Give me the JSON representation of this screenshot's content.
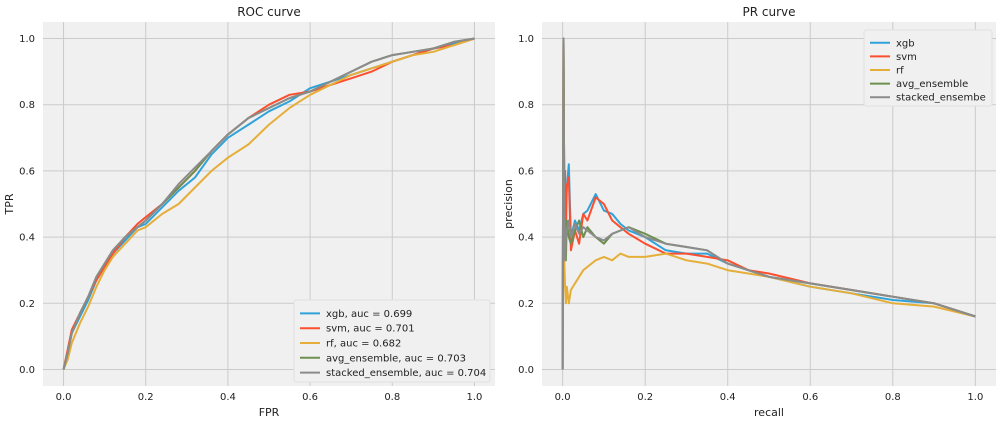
{
  "colors": {
    "xgb": "#30a2da",
    "svm": "#fc4f30",
    "rf": "#e5ae38",
    "avg_ensemble": "#6d904f",
    "stacked_ensemble": "#8b8b8b",
    "axes_background": "#f0f0f0",
    "grid": "#cbcbcb"
  },
  "chart_data": [
    {
      "type": "line",
      "title": "ROC curve",
      "xlabel": "FPR",
      "ylabel": "TPR",
      "xlim": [
        -0.05,
        1.05
      ],
      "ylim": [
        -0.05,
        1.05
      ],
      "xticks": [
        0.0,
        0.2,
        0.4,
        0.6,
        0.8,
        1.0
      ],
      "yticks": [
        0.0,
        0.2,
        0.4,
        0.6,
        0.8,
        1.0
      ],
      "xtick_labels": [
        "0.0",
        "0.2",
        "0.4",
        "0.6",
        "0.8",
        "1.0"
      ],
      "ytick_labels": [
        "0.0",
        "0.2",
        "0.4",
        "0.6",
        "0.8",
        "1.0"
      ],
      "grid": true,
      "legend_position": "lower-right",
      "series": [
        {
          "key": "xgb",
          "name": "xgb, auc = 0.699",
          "x": [
            0,
            0.01,
            0.02,
            0.04,
            0.06,
            0.08,
            0.1,
            0.12,
            0.15,
            0.18,
            0.2,
            0.24,
            0.28,
            0.32,
            0.36,
            0.4,
            0.45,
            0.5,
            0.55,
            0.6,
            0.65,
            0.7,
            0.75,
            0.8,
            0.85,
            0.9,
            0.95,
            1.0
          ],
          "y": [
            0,
            0.05,
            0.11,
            0.16,
            0.21,
            0.27,
            0.31,
            0.35,
            0.39,
            0.43,
            0.44,
            0.49,
            0.54,
            0.58,
            0.65,
            0.7,
            0.74,
            0.78,
            0.81,
            0.85,
            0.87,
            0.89,
            0.91,
            0.93,
            0.95,
            0.97,
            0.985,
            1.0
          ]
        },
        {
          "key": "svm",
          "name": "svm, auc = 0.701",
          "x": [
            0,
            0.01,
            0.02,
            0.04,
            0.06,
            0.08,
            0.1,
            0.12,
            0.15,
            0.18,
            0.2,
            0.24,
            0.28,
            0.32,
            0.36,
            0.4,
            0.45,
            0.5,
            0.55,
            0.6,
            0.65,
            0.7,
            0.75,
            0.8,
            0.85,
            0.9,
            0.95,
            1.0
          ],
          "y": [
            0,
            0.06,
            0.12,
            0.17,
            0.22,
            0.27,
            0.31,
            0.35,
            0.4,
            0.44,
            0.46,
            0.5,
            0.55,
            0.6,
            0.66,
            0.71,
            0.76,
            0.8,
            0.83,
            0.84,
            0.86,
            0.88,
            0.9,
            0.93,
            0.95,
            0.97,
            0.98,
            1.0
          ]
        },
        {
          "key": "rf",
          "name": "rf, auc = 0.682",
          "x": [
            0,
            0.01,
            0.02,
            0.04,
            0.06,
            0.08,
            0.1,
            0.12,
            0.15,
            0.18,
            0.2,
            0.24,
            0.28,
            0.32,
            0.36,
            0.4,
            0.45,
            0.5,
            0.55,
            0.6,
            0.65,
            0.7,
            0.75,
            0.8,
            0.85,
            0.9,
            0.95,
            1.0
          ],
          "y": [
            0,
            0.03,
            0.08,
            0.14,
            0.19,
            0.25,
            0.3,
            0.34,
            0.38,
            0.42,
            0.43,
            0.47,
            0.5,
            0.55,
            0.6,
            0.64,
            0.68,
            0.74,
            0.79,
            0.83,
            0.86,
            0.89,
            0.91,
            0.93,
            0.95,
            0.96,
            0.98,
            1.0
          ]
        },
        {
          "key": "avg_ensemble",
          "name": "avg_ensemble, auc = 0.703",
          "x": [
            0,
            0.01,
            0.02,
            0.04,
            0.06,
            0.08,
            0.1,
            0.12,
            0.15,
            0.18,
            0.2,
            0.24,
            0.28,
            0.32,
            0.36,
            0.4,
            0.45,
            0.5,
            0.55,
            0.6,
            0.65,
            0.7,
            0.75,
            0.8,
            0.85,
            0.9,
            0.95,
            1.0
          ],
          "y": [
            0,
            0.05,
            0.11,
            0.17,
            0.22,
            0.28,
            0.32,
            0.36,
            0.4,
            0.43,
            0.45,
            0.5,
            0.55,
            0.6,
            0.66,
            0.71,
            0.76,
            0.79,
            0.82,
            0.84,
            0.87,
            0.9,
            0.93,
            0.95,
            0.96,
            0.97,
            0.99,
            1.0
          ]
        },
        {
          "key": "stacked_ensemble",
          "name": "stacked_ensemble, auc = 0.704",
          "x": [
            0,
            0.01,
            0.02,
            0.04,
            0.06,
            0.08,
            0.1,
            0.12,
            0.15,
            0.18,
            0.2,
            0.24,
            0.28,
            0.32,
            0.36,
            0.4,
            0.45,
            0.5,
            0.55,
            0.6,
            0.65,
            0.7,
            0.75,
            0.8,
            0.85,
            0.9,
            0.95,
            1.0
          ],
          "y": [
            0,
            0.05,
            0.11,
            0.17,
            0.22,
            0.28,
            0.32,
            0.36,
            0.4,
            0.43,
            0.45,
            0.5,
            0.56,
            0.61,
            0.66,
            0.71,
            0.76,
            0.79,
            0.82,
            0.84,
            0.87,
            0.9,
            0.93,
            0.95,
            0.96,
            0.97,
            0.99,
            1.0
          ]
        }
      ]
    },
    {
      "type": "line",
      "title": "PR curve",
      "xlabel": "recall",
      "ylabel": "precision",
      "xlim": [
        -0.05,
        1.05
      ],
      "ylim": [
        -0.05,
        1.05
      ],
      "xticks": [
        0.0,
        0.2,
        0.4,
        0.6,
        0.8,
        1.0
      ],
      "yticks": [
        0.0,
        0.2,
        0.4,
        0.6,
        0.8,
        1.0
      ],
      "xtick_labels": [
        "0.0",
        "0.2",
        "0.4",
        "0.6",
        "0.8",
        "1.0"
      ],
      "ytick_labels": [
        "0.0",
        "0.2",
        "0.4",
        "0.6",
        "0.8",
        "1.0"
      ],
      "grid": true,
      "legend_position": "top-right",
      "series": [
        {
          "key": "xgb",
          "name": "xgb",
          "x": [
            0,
            0.002,
            0.004,
            0.006,
            0.008,
            0.01,
            0.015,
            0.02,
            0.03,
            0.04,
            0.05,
            0.06,
            0.08,
            0.1,
            0.12,
            0.14,
            0.16,
            0.2,
            0.25,
            0.3,
            0.35,
            0.4,
            0.45,
            0.5,
            0.6,
            0.7,
            0.8,
            0.9,
            1.0
          ],
          "y": [
            0,
            1.0,
            0.5,
            0.33,
            0.5,
            0.55,
            0.62,
            0.4,
            0.45,
            0.42,
            0.47,
            0.48,
            0.53,
            0.48,
            0.47,
            0.44,
            0.42,
            0.4,
            0.36,
            0.35,
            0.35,
            0.32,
            0.3,
            0.28,
            0.25,
            0.23,
            0.21,
            0.2,
            0.16
          ]
        },
        {
          "key": "svm",
          "name": "svm",
          "x": [
            0,
            0.002,
            0.004,
            0.006,
            0.008,
            0.01,
            0.015,
            0.02,
            0.03,
            0.04,
            0.05,
            0.06,
            0.08,
            0.1,
            0.12,
            0.14,
            0.16,
            0.2,
            0.25,
            0.3,
            0.35,
            0.4,
            0.45,
            0.5,
            0.6,
            0.7,
            0.8,
            0.9,
            1.0
          ],
          "y": [
            0,
            1.0,
            0.5,
            0.6,
            0.4,
            0.55,
            0.58,
            0.36,
            0.42,
            0.38,
            0.47,
            0.45,
            0.52,
            0.5,
            0.45,
            0.43,
            0.41,
            0.38,
            0.35,
            0.35,
            0.34,
            0.33,
            0.3,
            0.29,
            0.26,
            0.24,
            0.22,
            0.2,
            0.16
          ]
        },
        {
          "key": "rf",
          "name": "rf",
          "x": [
            0,
            0.002,
            0.004,
            0.006,
            0.008,
            0.01,
            0.015,
            0.02,
            0.03,
            0.04,
            0.05,
            0.06,
            0.08,
            0.1,
            0.12,
            0.14,
            0.16,
            0.2,
            0.25,
            0.3,
            0.35,
            0.4,
            0.45,
            0.5,
            0.6,
            0.7,
            0.8,
            0.9,
            1.0
          ],
          "y": [
            0,
            1.0,
            0.33,
            0.25,
            0.2,
            0.25,
            0.2,
            0.24,
            0.26,
            0.28,
            0.3,
            0.31,
            0.33,
            0.34,
            0.33,
            0.35,
            0.34,
            0.34,
            0.35,
            0.33,
            0.32,
            0.3,
            0.29,
            0.28,
            0.25,
            0.23,
            0.2,
            0.19,
            0.16
          ]
        },
        {
          "key": "avg_ensemble",
          "name": "avg_ensemble",
          "x": [
            0,
            0.002,
            0.004,
            0.006,
            0.008,
            0.01,
            0.015,
            0.02,
            0.03,
            0.04,
            0.05,
            0.06,
            0.08,
            0.1,
            0.12,
            0.14,
            0.16,
            0.2,
            0.25,
            0.3,
            0.35,
            0.4,
            0.45,
            0.5,
            0.6,
            0.7,
            0.8,
            0.9,
            1.0
          ],
          "y": [
            0,
            1.0,
            0.5,
            0.4,
            0.33,
            0.45,
            0.4,
            0.38,
            0.42,
            0.45,
            0.4,
            0.43,
            0.4,
            0.38,
            0.41,
            0.42,
            0.43,
            0.41,
            0.38,
            0.37,
            0.36,
            0.32,
            0.3,
            0.28,
            0.26,
            0.24,
            0.22,
            0.2,
            0.16
          ]
        },
        {
          "key": "stacked_ensemble",
          "name": "stacked_ensembe",
          "x": [
            0,
            0.002,
            0.004,
            0.006,
            0.008,
            0.01,
            0.015,
            0.02,
            0.03,
            0.04,
            0.05,
            0.06,
            0.08,
            0.1,
            0.12,
            0.14,
            0.16,
            0.2,
            0.25,
            0.3,
            0.35,
            0.4,
            0.45,
            0.5,
            0.6,
            0.7,
            0.8,
            0.9,
            1.0
          ],
          "y": [
            0,
            1.0,
            0.5,
            0.33,
            0.4,
            0.42,
            0.45,
            0.4,
            0.44,
            0.41,
            0.43,
            0.42,
            0.4,
            0.39,
            0.41,
            0.42,
            0.43,
            0.4,
            0.38,
            0.37,
            0.36,
            0.32,
            0.3,
            0.28,
            0.26,
            0.24,
            0.22,
            0.2,
            0.16
          ]
        }
      ]
    }
  ]
}
